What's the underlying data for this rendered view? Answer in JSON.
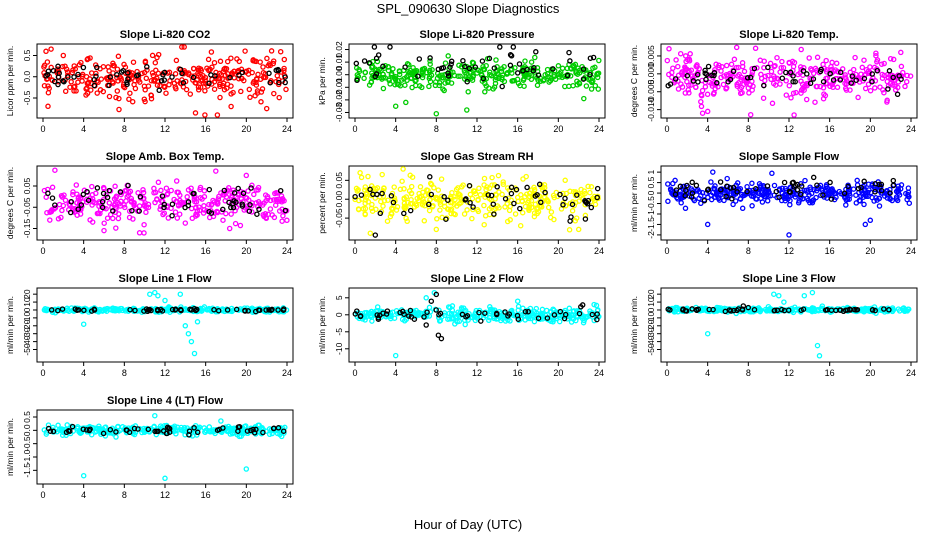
{
  "figure": {
    "title": "SPL_090630  Slope Diagnostics",
    "xlabel": "Hour of Day (UTC)"
  },
  "chart_data": [
    {
      "type": "scatter",
      "title": "Slope Li-820 CO2",
      "ylabel": "Licor ppm per min.",
      "xlim": [
        0,
        24
      ],
      "xticks": [
        0,
        4,
        8,
        12,
        16,
        20,
        24
      ],
      "ylim": [
        -0.9,
        0.7
      ],
      "yticks": [
        -0.5,
        0.0,
        0.5
      ],
      "ytick_labels": [
        "-0.5",
        "0.0",
        "0.5"
      ],
      "series": [
        {
          "color": "#ff0000",
          "center": 0.0,
          "spread": 0.28,
          "n": 330,
          "points": [
            {
              "x": 0.3,
              "y": 0.6
            },
            {
              "x": 0.8,
              "y": 0.65
            },
            {
              "x": 2.0,
              "y": 0.5
            },
            {
              "x": 15.0,
              "y": -0.85
            },
            {
              "x": 18.5,
              "y": -0.7
            },
            {
              "x": 22.0,
              "y": -0.75
            }
          ]
        },
        {
          "color": "#000000",
          "center": 0.02,
          "spread": 0.14,
          "n": 55,
          "points": []
        }
      ]
    },
    {
      "type": "scatter",
      "title": "Slope Li-820 Pressure",
      "ylabel": "kPa per min.",
      "xlim": [
        0,
        24
      ],
      "xticks": [
        0,
        4,
        8,
        12,
        16,
        20,
        24
      ],
      "ylim": [
        -0.032,
        0.022
      ],
      "yticks": [
        -0.03,
        -0.02,
        -0.01,
        0.0,
        0.01,
        0.02
      ],
      "ytick_labels": [
        "-0.03",
        "-0.02",
        "-0.01",
        "0.00",
        "0.01",
        "0.02"
      ],
      "series": [
        {
          "color": "#00cc00",
          "center": 0.0,
          "spread": 0.006,
          "n": 330,
          "points": [
            {
              "x": 4.0,
              "y": -0.025
            },
            {
              "x": 5.0,
              "y": -0.022
            },
            {
              "x": 8.0,
              "y": -0.031
            },
            {
              "x": 11.0,
              "y": -0.028
            },
            {
              "x": 22.5,
              "y": -0.019
            }
          ]
        },
        {
          "color": "#000000",
          "center": 0.008,
          "spread": 0.008,
          "n": 55,
          "points": []
        }
      ]
    },
    {
      "type": "scatter",
      "title": "Slope Li-820 Temp.",
      "ylabel": "degrees C per min.",
      "xlim": [
        0,
        24
      ],
      "xticks": [
        0,
        4,
        8,
        12,
        16,
        20,
        24
      ],
      "ylim": [
        -0.0115,
        0.0075
      ],
      "yticks": [
        -0.01,
        -0.005,
        0.0,
        0.005
      ],
      "ytick_labels": [
        "-0.010",
        "-0.005",
        "0.000",
        "0.005"
      ],
      "series": [
        {
          "color": "#ff00ff",
          "center": -0.001,
          "spread": 0.003,
          "n": 330,
          "points": [
            {
              "x": 0.2,
              "y": 0.007
            },
            {
              "x": 3.5,
              "y": -0.011
            },
            {
              "x": 4.0,
              "y": -0.0105
            },
            {
              "x": 12.5,
              "y": -0.0115
            },
            {
              "x": 23.0,
              "y": 0.006
            }
          ]
        },
        {
          "color": "#000000",
          "center": -0.001,
          "spread": 0.002,
          "n": 55,
          "points": []
        }
      ]
    },
    {
      "type": "scatter",
      "title": "Slope Amb. Box Temp.",
      "ylabel": "degrees C per min.",
      "xlim": [
        0,
        24
      ],
      "xticks": [
        0,
        4,
        8,
        12,
        16,
        20,
        24
      ],
      "ylim": [
        -0.19,
        0.13
      ],
      "yticks": [
        -0.15,
        -0.05,
        0.05
      ],
      "ytick_labels": [
        "-0.15",
        "-0.05",
        "0.05"
      ],
      "series": [
        {
          "color": "#ff00ff",
          "center": -0.03,
          "spread": 0.05,
          "n": 330,
          "points": [
            {
              "x": 17.0,
              "y": 0.12
            },
            {
              "x": 20.0,
              "y": 0.1
            },
            {
              "x": 9.5,
              "y": -0.17
            },
            {
              "x": 6.0,
              "y": -0.16
            }
          ]
        },
        {
          "color": "#000000",
          "center": -0.02,
          "spread": 0.04,
          "n": 55,
          "points": []
        }
      ]
    },
    {
      "type": "scatter",
      "title": "Slope Gas Stream RH",
      "ylabel": "percent per min.",
      "xlim": [
        0,
        24
      ],
      "xticks": [
        0,
        4,
        8,
        12,
        16,
        20,
        24
      ],
      "ylim": [
        -0.1,
        0.08
      ],
      "yticks": [
        -0.05,
        0.0,
        0.05
      ],
      "ytick_labels": [
        "-0.05",
        "0.00",
        "0.05"
      ],
      "series": [
        {
          "color": "#ffff00",
          "center": 0.0,
          "spread": 0.028,
          "n": 330,
          "points": [
            {
              "x": 0.5,
              "y": 0.07
            },
            {
              "x": 1.5,
              "y": -0.09
            },
            {
              "x": 8.0,
              "y": -0.08
            },
            {
              "x": 22.0,
              "y": -0.08
            }
          ]
        },
        {
          "color": "#000000",
          "center": 0.0,
          "spread": 0.025,
          "n": 55,
          "points": [
            {
              "x": 2.0,
              "y": -0.095
            }
          ]
        }
      ]
    },
    {
      "type": "scatter",
      "title": "Slope Sample Flow",
      "ylabel": "ml/min per min.",
      "xlim": [
        0,
        24
      ],
      "xticks": [
        0,
        4,
        8,
        12,
        16,
        20,
        24
      ],
      "ylim": [
        -2.1,
        1.15
      ],
      "yticks": [
        -2.0,
        -1.5,
        -1.0,
        -0.5,
        0.0,
        0.5,
        1.0
      ],
      "ytick_labels": [
        "-2",
        "-1.5",
        "-1",
        "-0.5",
        "0",
        "0.5",
        "1"
      ],
      "series": [
        {
          "color": "#0000ff",
          "center": 0.0,
          "spread": 0.28,
          "n": 330,
          "points": [
            {
              "x": 4.0,
              "y": -1.5
            },
            {
              "x": 12.0,
              "y": -2.0
            },
            {
              "x": 19.5,
              "y": -1.5
            },
            {
              "x": 20.0,
              "y": -1.3
            },
            {
              "x": 4.5,
              "y": 1.0
            }
          ]
        },
        {
          "color": "#000000",
          "center": 0.15,
          "spread": 0.35,
          "n": 55,
          "points": []
        }
      ]
    },
    {
      "type": "scatter",
      "title": "Slope Line 1 Flow",
      "ylabel": "ml/min per min.",
      "xlim": [
        0,
        24
      ],
      "xticks": [
        0,
        4,
        8,
        12,
        16,
        20,
        24
      ],
      "ylim": [
        -62,
        24
      ],
      "yticks": [
        -50,
        -40,
        -30,
        -20,
        -10,
        0,
        10,
        20
      ],
      "ytick_labels": [
        "-50",
        "-40",
        "-30",
        "-20",
        "-10",
        "0",
        "10",
        "20"
      ],
      "series": [
        {
          "color": "#00ffff",
          "center": 0.0,
          "spread": 1.5,
          "n": 300,
          "points": [
            {
              "x": 4.0,
              "y": -18
            },
            {
              "x": 10.5,
              "y": 20
            },
            {
              "x": 11.0,
              "y": 22
            },
            {
              "x": 11.3,
              "y": 18
            },
            {
              "x": 12.0,
              "y": 12
            },
            {
              "x": 13.5,
              "y": 20
            },
            {
              "x": 14.0,
              "y": -20
            },
            {
              "x": 14.3,
              "y": -30
            },
            {
              "x": 14.6,
              "y": -40
            },
            {
              "x": 14.9,
              "y": -55
            },
            {
              "x": 15.2,
              "y": -15
            }
          ]
        },
        {
          "color": "#000000",
          "center": 0.0,
          "spread": 0.8,
          "n": 50,
          "points": []
        }
      ]
    },
    {
      "type": "scatter",
      "title": "Slope Line 2 Flow",
      "ylabel": "ml/min per min.",
      "xlim": [
        0,
        24
      ],
      "xticks": [
        0,
        4,
        8,
        12,
        16,
        20,
        24
      ],
      "ylim": [
        -13,
        7
      ],
      "yticks": [
        -10,
        -5,
        0,
        5
      ],
      "ytick_labels": [
        "-10",
        "-5",
        "0",
        "5"
      ],
      "series": [
        {
          "color": "#00ffff",
          "center": 0.0,
          "spread": 1.2,
          "n": 300,
          "points": [
            {
              "x": 4.0,
              "y": -12
            },
            {
              "x": 7.0,
              "y": 5
            },
            {
              "x": 7.8,
              "y": 6.5
            },
            {
              "x": 16.0,
              "y": 4
            }
          ]
        },
        {
          "color": "#000000",
          "center": 0.0,
          "spread": 1.0,
          "n": 50,
          "points": [
            {
              "x": 8.0,
              "y": 6
            },
            {
              "x": 7.5,
              "y": 4
            },
            {
              "x": 8.2,
              "y": -6
            },
            {
              "x": 8.5,
              "y": -7
            },
            {
              "x": 7.0,
              "y": -3
            }
          ]
        }
      ]
    },
    {
      "type": "scatter",
      "title": "Slope Line 3 Flow",
      "ylabel": "ml/min per min.",
      "xlim": [
        0,
        24
      ],
      "xticks": [
        0,
        4,
        8,
        12,
        16,
        20,
        24
      ],
      "ylim": [
        -62,
        24
      ],
      "yticks": [
        -50,
        -40,
        -30,
        -20,
        -10,
        0,
        10,
        20
      ],
      "ytick_labels": [
        "-50",
        "-40",
        "-30",
        "-20",
        "-10",
        "0",
        "10",
        "20"
      ],
      "series": [
        {
          "color": "#00ffff",
          "center": 0.0,
          "spread": 1.5,
          "n": 300,
          "points": [
            {
              "x": 4.0,
              "y": -30
            },
            {
              "x": 10.5,
              "y": 20
            },
            {
              "x": 11.0,
              "y": 18
            },
            {
              "x": 11.5,
              "y": 10
            },
            {
              "x": 13.5,
              "y": 18
            },
            {
              "x": 14.3,
              "y": 22
            },
            {
              "x": 14.8,
              "y": -45
            },
            {
              "x": 15.0,
              "y": -58
            }
          ]
        },
        {
          "color": "#000000",
          "center": 0.0,
          "spread": 0.8,
          "n": 50,
          "points": [
            {
              "x": 7.5,
              "y": 5
            },
            {
              "x": 8.0,
              "y": 3
            }
          ]
        }
      ]
    },
    {
      "type": "scatter",
      "title": "Slope Line 4 (LT) Flow",
      "ylabel": "ml/min per min.",
      "xlim": [
        0,
        24
      ],
      "xticks": [
        0,
        4,
        8,
        12,
        16,
        20,
        24
      ],
      "ylim": [
        -1.9,
        0.65
      ],
      "yticks": [
        -1.5,
        -1.0,
        -0.5,
        0.0,
        0.5
      ],
      "ytick_labels": [
        "-1.5",
        "-1.0",
        "-0.5",
        "0.0",
        "0.5"
      ],
      "series": [
        {
          "color": "#00ffff",
          "center": 0.0,
          "spread": 0.1,
          "n": 300,
          "points": [
            {
              "x": 4.0,
              "y": -1.7
            },
            {
              "x": 12.0,
              "y": -1.8
            },
            {
              "x": 20.0,
              "y": -1.45
            },
            {
              "x": 11.0,
              "y": 0.55
            },
            {
              "x": 17.5,
              "y": 0.35
            }
          ]
        },
        {
          "color": "#000000",
          "center": 0.0,
          "spread": 0.08,
          "n": 50,
          "points": []
        }
      ]
    }
  ]
}
